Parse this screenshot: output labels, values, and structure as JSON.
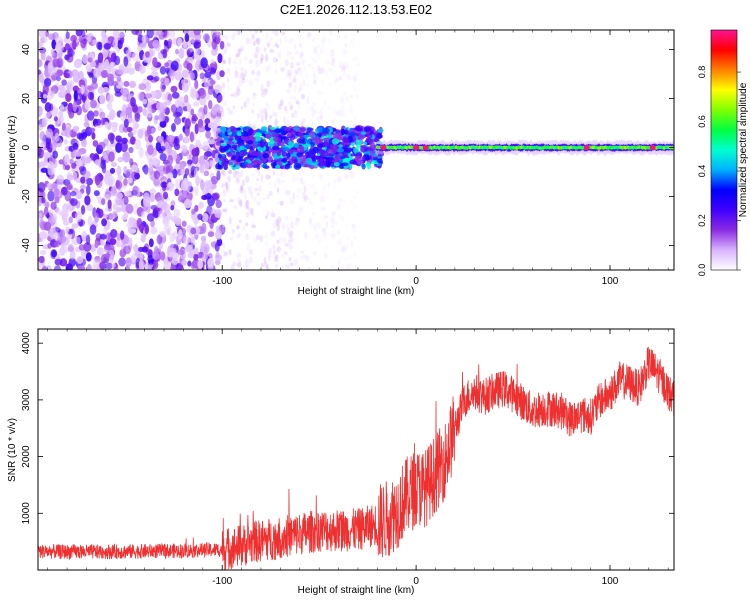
{
  "figure": {
    "title": "C2E1.2026.112.13.53.E02"
  },
  "chart_data": [
    {
      "type": "heatmap",
      "title": "",
      "xlabel": "Height of straight line (km)",
      "ylabel": "Frequency (Hz)",
      "xlim": [
        -195,
        133
      ],
      "ylim": [
        -50,
        48
      ],
      "xticks": [
        -100,
        0,
        100
      ],
      "yticks": [
        -40,
        -20,
        0,
        20,
        40
      ],
      "colorbar": {
        "label": "Normalized spectral amplitude",
        "range": [
          0.0,
          0.97
        ],
        "ticks": [
          0.0,
          0.2,
          0.4,
          0.6,
          0.8
        ],
        "tick_labels": [
          "0.0",
          "0.2",
          "0.4",
          "0.6",
          "0.8"
        ],
        "colormap": [
          "#ffffff",
          "#d9b3ff",
          "#8a2be2",
          "#4000ff",
          "#0000ff",
          "#00b0ff",
          "#00ffd0",
          "#00ff40",
          "#80ff00",
          "#ffff00",
          "#ff8000",
          "#ff0000",
          "#ff1493"
        ]
      },
      "regions": [
        {
          "x_range": [
            -195,
            -100
          ],
          "freq_range": [
            -50,
            48
          ],
          "amplitude": 0.1,
          "description": "diffuse noise"
        },
        {
          "x_range": [
            -100,
            -20
          ],
          "freq_range": [
            -8,
            8
          ],
          "amplitude": 0.3,
          "description": "broadened band"
        },
        {
          "x_range": [
            -20,
            133
          ],
          "freq_range": [
            -2,
            2
          ],
          "amplitude": 0.55,
          "description": "narrow band near 0 Hz"
        }
      ],
      "peaks_x": [
        -17,
        0,
        5,
        88,
        122
      ]
    },
    {
      "type": "line",
      "title": "",
      "xlabel": "Height of straight line (km)",
      "ylabel": "SNR (10 * v/v)",
      "xlim": [
        -195,
        133
      ],
      "ylim": [
        0,
        4250
      ],
      "xticks": [
        -100,
        0,
        100
      ],
      "yticks": [
        1000,
        2000,
        3000,
        4000
      ],
      "series": [
        {
          "name": "SNR",
          "color": "#ee3030",
          "x": [
            -195,
            -180,
            -160,
            -140,
            -120,
            -100,
            -90,
            -80,
            -70,
            -60,
            -50,
            -40,
            -30,
            -25,
            -20,
            -15,
            -10,
            -5,
            0,
            5,
            10,
            15,
            20,
            25,
            30,
            35,
            40,
            45,
            50,
            55,
            60,
            65,
            70,
            75,
            80,
            85,
            90,
            95,
            100,
            105,
            110,
            115,
            120,
            125,
            130,
            133
          ],
          "y": [
            330,
            320,
            320,
            330,
            340,
            360,
            430,
            520,
            570,
            640,
            700,
            700,
            710,
            760,
            820,
            900,
            1050,
            1300,
            1450,
            1450,
            1700,
            1950,
            2500,
            3000,
            3150,
            3050,
            3150,
            3200,
            3100,
            2950,
            2800,
            2850,
            2850,
            2800,
            2650,
            2750,
            2700,
            3000,
            3100,
            3350,
            3300,
            3200,
            3650,
            3450,
            3150,
            3000
          ]
        }
      ],
      "noise_amplitude": [
        {
          "x_range": [
            -195,
            -100
          ],
          "amplitude": 130
        },
        {
          "x_range": [
            -100,
            -20
          ],
          "amplitude": 380
        },
        {
          "x_range": [
            -20,
            20
          ],
          "amplitude": 700
        },
        {
          "x_range": [
            20,
            133
          ],
          "amplitude": 330
        }
      ]
    }
  ]
}
